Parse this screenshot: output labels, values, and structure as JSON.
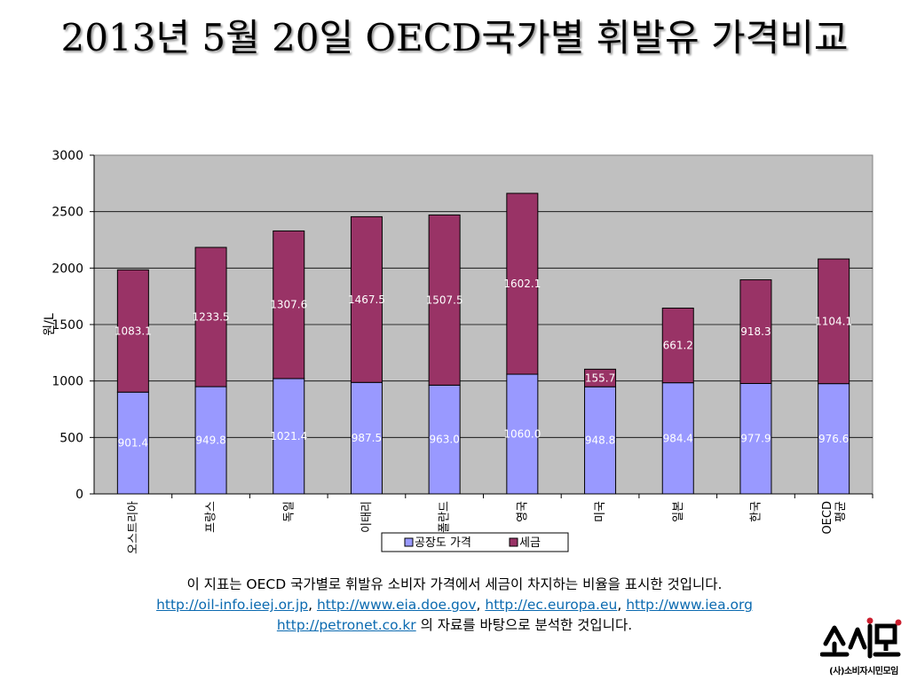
{
  "slide": {
    "title": "2013년 5월 20일 OECD국가별 휘발유 가격비교"
  },
  "chart_data": {
    "type": "bar",
    "stacked": true,
    "categories": [
      "오스트리아",
      "프랑스",
      "독일",
      "이태리",
      "폴란드",
      "영국",
      "미국",
      "일본",
      "한국",
      "OECD 평균"
    ],
    "series": [
      {
        "name": "공장도 가격",
        "values": [
          901.4,
          949.8,
          1021.4,
          987.5,
          963.0,
          1060.0,
          948.8,
          984.4,
          977.9,
          976.6
        ],
        "color": "#9999ff"
      },
      {
        "name": "세금",
        "values": [
          1083.1,
          1233.5,
          1307.6,
          1467.5,
          1507.5,
          1602.1,
          155.7,
          661.2,
          918.3,
          1104.1
        ],
        "color": "#993366"
      }
    ],
    "data_labels": [
      [
        "901.4",
        "949.8",
        "1021.4",
        "987.5",
        "963.0",
        "1060.0",
        "948.8",
        "984.4",
        "977.9",
        "976.6"
      ],
      [
        "1083.1",
        "1233.5",
        "1307.6",
        "1467.5",
        "1507.5",
        "1602.1",
        "155.7",
        "661.2",
        "918.3",
        "1104.1"
      ]
    ],
    "ylabel": "원/L",
    "ylim": [
      0,
      3000
    ],
    "yticks": [
      0,
      500,
      1000,
      1500,
      2000,
      2500,
      3000
    ],
    "ytick_labels": [
      "0",
      "500",
      "1000",
      "1500",
      "2000",
      "2500",
      "3000"
    ],
    "grid": true,
    "plot_background": "#c0c0c0",
    "legend_position": "bottom"
  },
  "footnote": {
    "line1": "이 지표는 OECD 국가별로 휘발유 소비자 가격에서 세금이 차지하는 비율을 표시한 것입니다.",
    "links": [
      "http://oil-info.ieej.or.jp",
      "http://www.eia.doe.gov",
      "http://ec.europa.eu",
      "http://www.iea.org",
      "http://petronet.co.kr"
    ],
    "sep1": ", ",
    "sep2": ", ",
    "sep3": ", ",
    "tail": " 의 자료를 바탕으로 분석한 것입니다."
  },
  "logo": {
    "mark": "소시모",
    "caption": "(사)소비자시민모임",
    "color": "#cc1f2f"
  }
}
